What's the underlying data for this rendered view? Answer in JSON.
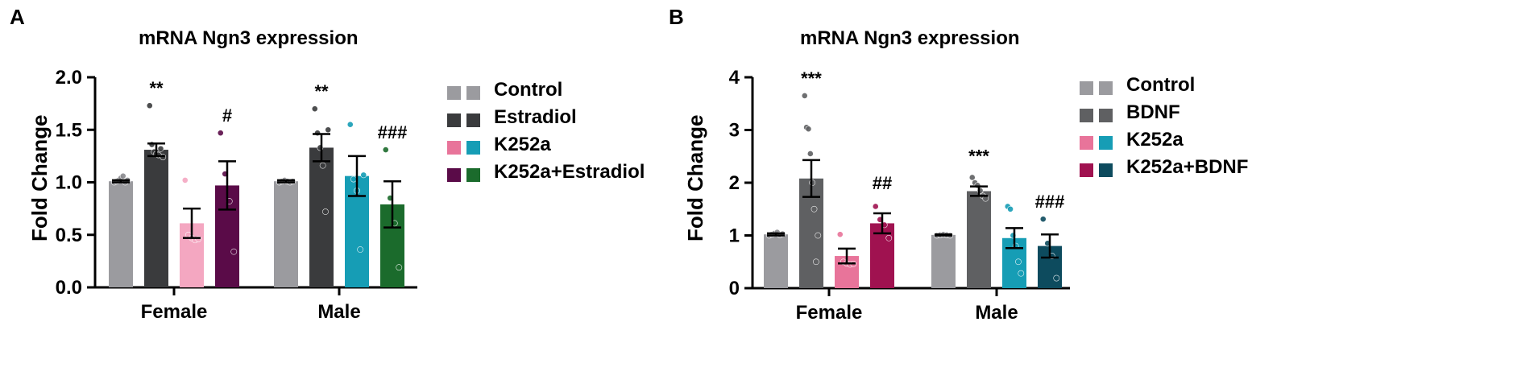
{
  "chart_data": [
    {
      "panel": "A",
      "type": "bar",
      "title": "mRNA Ngn3 expression",
      "ylabel": "Fold Change",
      "ylim": [
        0,
        2.0
      ],
      "yticks": [
        "0.0",
        "0.5",
        "1.0",
        "1.5",
        "2.0"
      ],
      "categories": [
        "Female",
        "Male"
      ],
      "legend": [
        {
          "label": "Control",
          "colors": [
            "#9b9b9f",
            "#9b9b9f"
          ]
        },
        {
          "label": "Estradiol",
          "colors": [
            "#3a3b3d",
            "#3a3b3d"
          ]
        },
        {
          "label": "K252a",
          "colors": [
            "#e8749a",
            "#169db5"
          ]
        },
        {
          "label": "K252a+Estradiol",
          "colors": [
            "#5a0b48",
            "#1b6b2c"
          ]
        }
      ],
      "bars": [
        {
          "group": "Female",
          "series": "Control",
          "color": "#9b9b9f",
          "mean": 1.01,
          "sem": 0.01,
          "points": [
            1.0,
            1.01,
            1.02,
            1.04,
            1.06,
            1.0,
            1.02
          ],
          "sig": ""
        },
        {
          "group": "Female",
          "series": "Estradiol",
          "color": "#3a3b3d",
          "mean": 1.31,
          "sem": 0.06,
          "points": [
            1.73,
            1.36,
            1.29,
            1.27,
            1.26,
            1.32,
            1.24
          ],
          "sig": "**"
        },
        {
          "group": "Female",
          "series": "K252a",
          "color": "#f4a7c1",
          "mean": 0.61,
          "sem": 0.14,
          "points": [
            1.02,
            0.5,
            0.47,
            0.45,
            0.46
          ],
          "sig": ""
        },
        {
          "group": "Female",
          "series": "K252a+Estradiol",
          "color": "#5a0b48",
          "mean": 0.97,
          "sem": 0.23,
          "points": [
            1.47,
            1.08,
            0.82,
            0.34
          ],
          "sig": "#"
        },
        {
          "group": "Male",
          "series": "Control",
          "color": "#9b9b9f",
          "mean": 1.01,
          "sem": 0.01,
          "points": [
            1.0,
            1.01,
            1.02,
            1.01,
            1.0,
            1.01
          ],
          "sig": ""
        },
        {
          "group": "Male",
          "series": "Estradiol",
          "color": "#3a3b3d",
          "mean": 1.33,
          "sem": 0.13,
          "points": [
            1.7,
            1.47,
            1.33,
            1.16,
            0.72,
            1.5
          ],
          "sig": "**"
        },
        {
          "group": "Male",
          "series": "K252a",
          "color": "#169db5",
          "mean": 1.06,
          "sem": 0.19,
          "points": [
            1.55,
            1.03,
            0.92,
            0.36,
            1.07
          ],
          "sig": ""
        },
        {
          "group": "Male",
          "series": "K252a+Estradiol",
          "color": "#1b6b2c",
          "mean": 0.79,
          "sem": 0.22,
          "points": [
            1.31,
            0.85,
            0.61,
            0.19
          ],
          "sig": "###"
        }
      ]
    },
    {
      "panel": "B",
      "type": "bar",
      "title": "mRNA Ngn3 expression",
      "ylabel": "Fold Change",
      "ylim": [
        0,
        4
      ],
      "yticks": [
        "0",
        "1",
        "2",
        "3",
        "4"
      ],
      "categories": [
        "Female",
        "Male"
      ],
      "legend": [
        {
          "label": "Control",
          "colors": [
            "#9b9b9f",
            "#9b9b9f"
          ]
        },
        {
          "label": "BDNF",
          "colors": [
            "#5f6062",
            "#5f6062"
          ]
        },
        {
          "label": "K252a",
          "colors": [
            "#e8749a",
            "#169db5"
          ]
        },
        {
          "label": "K252a+BDNF",
          "colors": [
            "#a01250",
            "#0d4b5e"
          ]
        }
      ],
      "bars": [
        {
          "group": "Female",
          "series": "Control",
          "color": "#9b9b9f",
          "mean": 1.02,
          "sem": 0.02,
          "points": [
            1.0,
            1.02,
            1.04,
            1.06,
            1.01,
            1.03
          ],
          "sig": ""
        },
        {
          "group": "Female",
          "series": "BDNF",
          "color": "#5f6062",
          "mean": 2.08,
          "sem": 0.35,
          "points": [
            3.65,
            3.05,
            3.02,
            2.55,
            2.0,
            1.5,
            0.5,
            1.0
          ],
          "sig": "***"
        },
        {
          "group": "Female",
          "series": "K252a",
          "color": "#e8749a",
          "mean": 0.61,
          "sem": 0.14,
          "points": [
            1.02,
            0.5,
            0.47,
            0.45,
            0.46
          ],
          "sig": ""
        },
        {
          "group": "Female",
          "series": "K252a+BDNF",
          "color": "#a01250",
          "mean": 1.23,
          "sem": 0.19,
          "points": [
            1.55,
            1.3,
            1.2,
            0.95
          ],
          "sig": "##"
        },
        {
          "group": "Male",
          "series": "Control",
          "color": "#9b9b9f",
          "mean": 1.01,
          "sem": 0.01,
          "points": [
            1.0,
            1.01,
            1.02,
            1.01,
            1.0
          ],
          "sig": ""
        },
        {
          "group": "Male",
          "series": "BDNF",
          "color": "#5f6062",
          "mean": 1.84,
          "sem": 0.09,
          "points": [
            2.1,
            2.0,
            1.95,
            1.85,
            1.75,
            1.7
          ],
          "sig": "***"
        },
        {
          "group": "Male",
          "series": "K252a",
          "color": "#169db5",
          "mean": 0.95,
          "sem": 0.19,
          "points": [
            1.55,
            1.5,
            1.0,
            0.8,
            0.5,
            0.28
          ],
          "sig": ""
        },
        {
          "group": "Male",
          "series": "K252a+BDNF",
          "color": "#0d4b5e",
          "mean": 0.8,
          "sem": 0.22,
          "points": [
            1.31,
            0.85,
            0.61,
            0.19
          ],
          "sig": "###"
        }
      ]
    }
  ],
  "panels": {
    "A": {
      "letter": "A",
      "title": "mRNA Ngn3 expression",
      "ylabel": "Fold Change"
    },
    "B": {
      "letter": "B",
      "title": "mRNA Ngn3 expression",
      "ylabel": "Fold Change"
    }
  }
}
